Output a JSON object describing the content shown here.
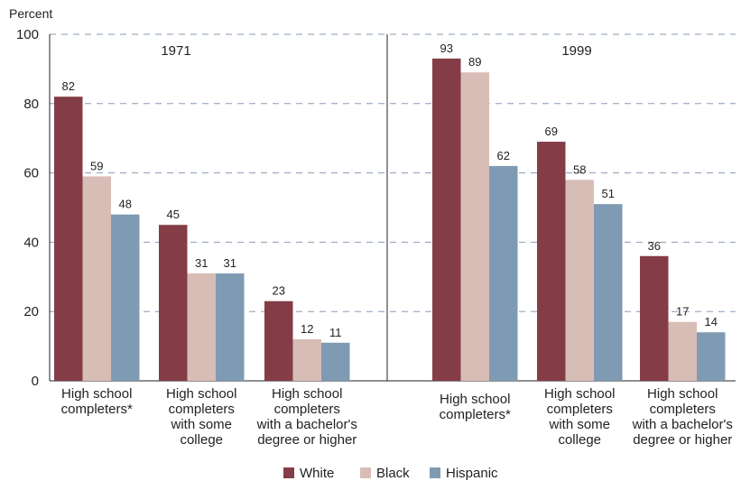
{
  "chart_data": {
    "type": "bar",
    "ylabel": "Percent",
    "ylim": [
      0,
      100
    ],
    "yticks": [
      0,
      20,
      40,
      60,
      80,
      100
    ],
    "grid": "horizontal dashed",
    "legend_position": "bottom",
    "colors": {
      "White": "#843d47",
      "Black": "#d8bdb6",
      "Hispanic": "#7f9bb3"
    },
    "panels": [
      {
        "title": "1971",
        "categories": [
          [
            "High school",
            "completers*"
          ],
          [
            "High school",
            "completers",
            "with some",
            "college"
          ],
          [
            "High school",
            "completers",
            "with a bachelor's",
            "degree or higher"
          ]
        ],
        "series": [
          {
            "name": "White",
            "values": [
              82,
              45,
              23
            ]
          },
          {
            "name": "Black",
            "values": [
              59,
              31,
              12
            ]
          },
          {
            "name": "Hispanic",
            "values": [
              48,
              31,
              11
            ]
          }
        ]
      },
      {
        "title": "1999",
        "categories": [
          [
            "High school",
            "completers*"
          ],
          [
            "High school",
            "completers",
            "with some",
            "college"
          ],
          [
            "High school",
            "completers",
            "with a bachelor's",
            "degree or higher"
          ]
        ],
        "series": [
          {
            "name": "White",
            "values": [
              93,
              69,
              36
            ]
          },
          {
            "name": "Black",
            "values": [
              89,
              58,
              17
            ]
          },
          {
            "name": "Hispanic",
            "values": [
              62,
              51,
              14
            ]
          }
        ]
      }
    ]
  }
}
